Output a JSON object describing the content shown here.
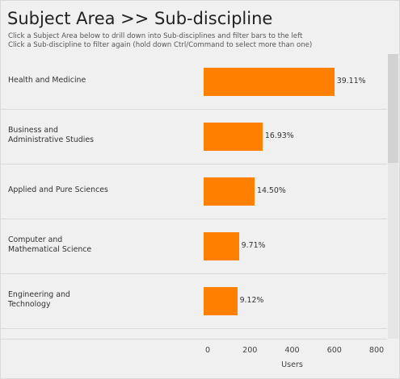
{
  "header": {
    "title": "Subject Area >> Sub-discipline",
    "subtitle_1": "Click a Subject Area below to drill down into Sub-disciplines and filter bars to the left",
    "subtitle_2": "Click a Sub-discipline to filter again (hold down Ctrl/Command to select more than one)"
  },
  "chart_data": {
    "type": "bar",
    "orientation": "horizontal",
    "categories": [
      "Health and Medicine",
      "Business and\nAdministrative Studies",
      "Applied and Pure Sciences",
      "Computer and\nMathematical Science",
      "Engineering and\nTechnology",
      ""
    ],
    "values": [
      600,
      260,
      222,
      148,
      140,
      35
    ],
    "data_labels": [
      "39.11%",
      "16.93%",
      "14.50%",
      "9.71%",
      "9.12%",
      ""
    ],
    "xlabel": "Users",
    "xticks": [
      "0",
      "200",
      "400",
      "600",
      "800"
    ],
    "xlim": [
      -25,
      800
    ],
    "bar_color": "#ff8000",
    "grid": false
  }
}
